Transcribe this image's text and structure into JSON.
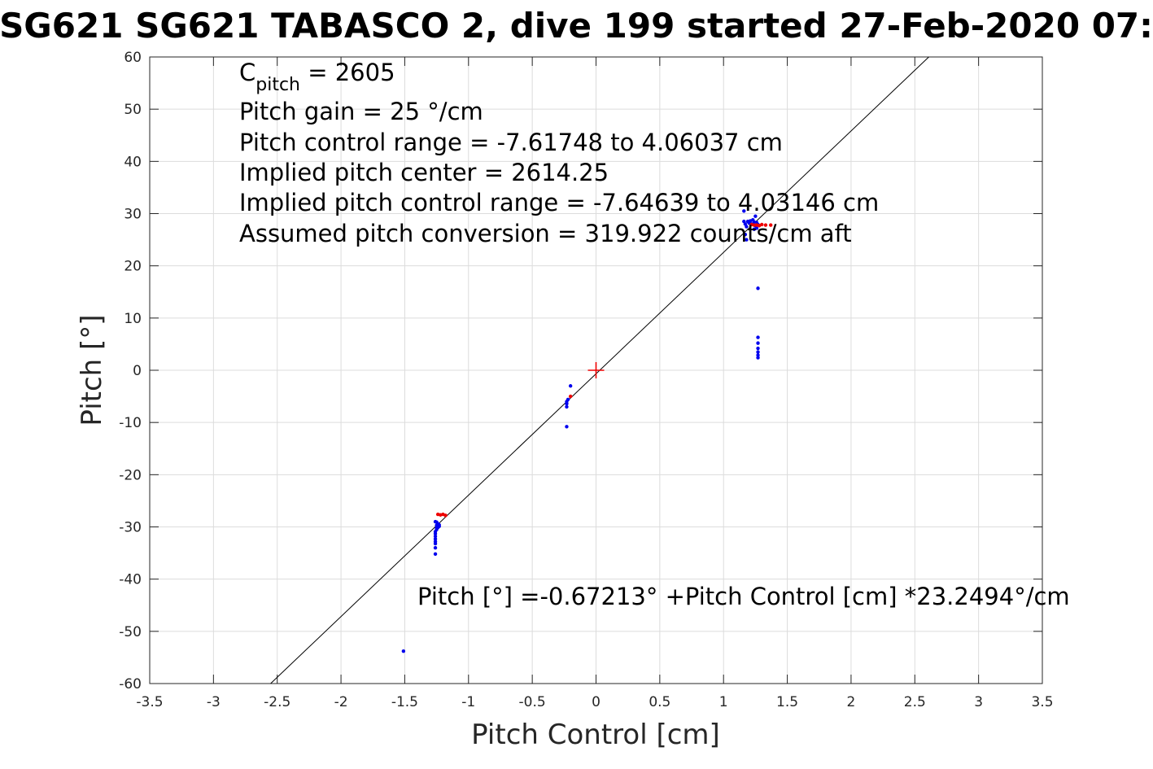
{
  "chart_data": {
    "type": "scatter",
    "title": "SG621 SG621 TABASCO 2, dive 199 started 27-Feb-2020 07:",
    "xlabel": "Pitch Control [cm]",
    "ylabel": "Pitch [°]",
    "xlim": [
      -3.5,
      3.5
    ],
    "ylim": [
      -60,
      60
    ],
    "xticks": [
      -3.5,
      -3,
      -2.5,
      -2,
      -1.5,
      -1,
      -0.5,
      0,
      0.5,
      1,
      1.5,
      2,
      2.5,
      3,
      3.5
    ],
    "xtick_labels": [
      "-3.5",
      "-3",
      "-2.5",
      "-2",
      "-1.5",
      "-1",
      "-0.5",
      "0",
      "0.5",
      "1",
      "1.5",
      "2",
      "2.5",
      "3",
      "3.5"
    ],
    "yticks": [
      -60,
      -50,
      -40,
      -30,
      -20,
      -10,
      0,
      10,
      20,
      30,
      40,
      50,
      60
    ],
    "ytick_labels": [
      "-60",
      "-50",
      "-40",
      "-30",
      "-20",
      "-10",
      "0",
      "10",
      "20",
      "30",
      "40",
      "50",
      "60"
    ],
    "grid": true,
    "series": [
      {
        "kind": "points",
        "color": "#0000ee",
        "points": [
          [
            -1.51,
            -53.8
          ],
          [
            -1.26,
            -35.2
          ],
          [
            -1.26,
            -34
          ],
          [
            -1.26,
            -33.2
          ],
          [
            -1.26,
            -32.8
          ],
          [
            -1.26,
            -32.3
          ],
          [
            -1.26,
            -31.8
          ],
          [
            -1.26,
            -31.3
          ],
          [
            -1.26,
            -30.9
          ],
          [
            -1.25,
            -30.5
          ],
          [
            -1.25,
            -30.2
          ],
          [
            -1.24,
            -29.9
          ],
          [
            -1.25,
            -29.7
          ],
          [
            -1.24,
            -29.4
          ],
          [
            -1.23,
            -29.6
          ],
          [
            -1.25,
            -29.1
          ],
          [
            -1.26,
            -29
          ],
          [
            -1.24,
            -30.1
          ],
          [
            -1.23,
            -29.9
          ],
          [
            -0.23,
            -10.8
          ],
          [
            -0.23,
            -7
          ],
          [
            -0.23,
            -6.4
          ],
          [
            -0.23,
            -6
          ],
          [
            -0.22,
            -5.6
          ],
          [
            -0.2,
            -3
          ],
          [
            1.16,
            30.5
          ],
          [
            1.16,
            28.5
          ],
          [
            1.17,
            28
          ],
          [
            1.18,
            27.5
          ],
          [
            1.19,
            28.5
          ],
          [
            1.2,
            28.2
          ],
          [
            1.17,
            26
          ],
          [
            1.21,
            28.6
          ],
          [
            1.22,
            28
          ],
          [
            1.23,
            28.8
          ],
          [
            1.24,
            28.4
          ],
          [
            1.25,
            29.5
          ],
          [
            1.25,
            27.7
          ],
          [
            1.26,
            27.2
          ],
          [
            1.26,
            28.3
          ],
          [
            1.27,
            27.9
          ],
          [
            1.24,
            27
          ],
          [
            1.18,
            25
          ],
          [
            1.27,
            15.7
          ],
          [
            1.27,
            6.3
          ],
          [
            1.27,
            5.2
          ],
          [
            1.27,
            4.2
          ],
          [
            1.27,
            3.5
          ],
          [
            1.27,
            2.9
          ],
          [
            1.27,
            2.4
          ]
        ]
      },
      {
        "kind": "points",
        "color": "#ee0000",
        "points": [
          [
            -1.24,
            -27.6
          ],
          [
            -1.22,
            -27.7
          ],
          [
            -1.2,
            -27.6
          ],
          [
            -1.18,
            -27.8
          ],
          [
            -0.2,
            -5
          ],
          [
            1.22,
            27.9
          ],
          [
            1.24,
            27.8
          ],
          [
            1.26,
            27.8
          ],
          [
            1.28,
            27.7
          ],
          [
            1.3,
            27.9
          ],
          [
            1.33,
            27.8
          ],
          [
            1.37,
            27.8
          ]
        ]
      }
    ],
    "center_marker": {
      "x": 0,
      "y": 0,
      "color": "#ee0000"
    },
    "fit_line": {
      "intercept": -0.67213,
      "slope": 23.2494,
      "color": "#000000"
    },
    "annotations": {
      "line1_main": "C",
      "line1_sub": "pitch",
      "line1_rest": " = 2605",
      "line2": "Pitch gain = 25 °/cm",
      "line3": "Pitch control range = -7.61748 to 4.06037 cm",
      "line4": "Implied pitch center = 2614.25",
      "line5": "Implied pitch control range = -7.64639 to 4.03146 cm",
      "line6": "Assumed pitch conversion = 319.922 counts/cm aft",
      "fit_label": "Pitch [°] =-0.67213° +Pitch Control [cm] *23.2494°/cm"
    }
  }
}
